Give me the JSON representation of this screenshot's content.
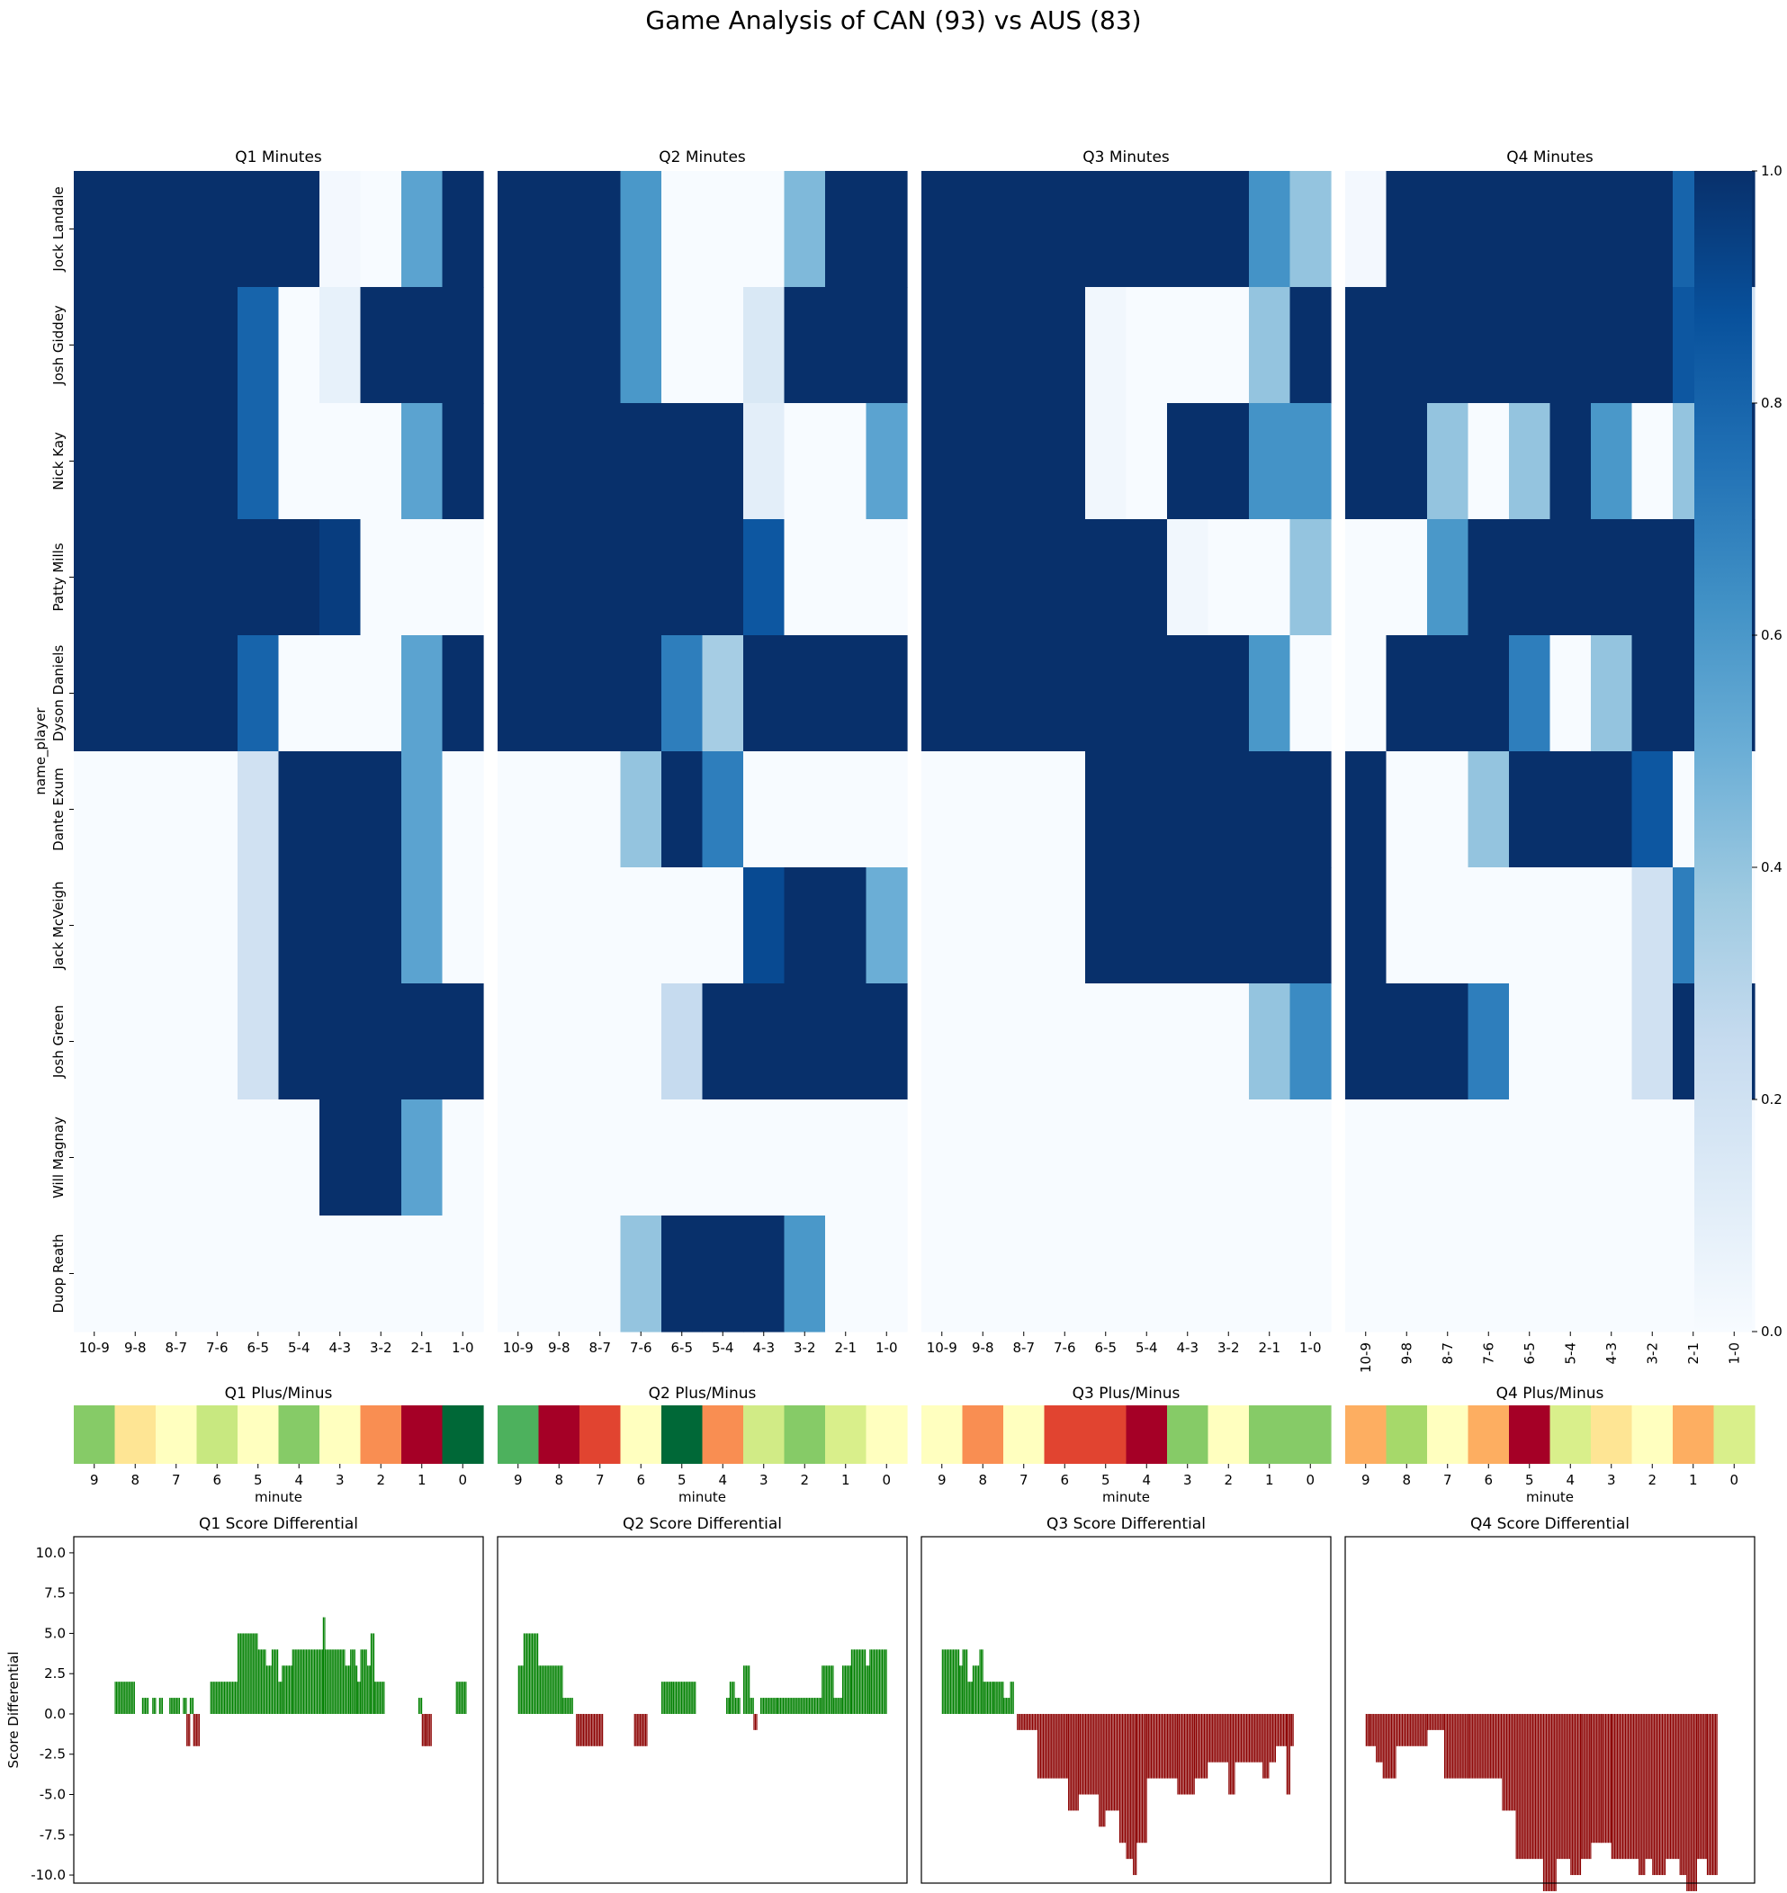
{
  "title": "Game Analysis of CAN (93) vs AUS (83)",
  "players": [
    "Jock Landale",
    "Josh Giddey",
    "Nick Kay",
    "Patty Mills",
    "Dyson Daniels",
    "Dante Exum",
    "Jack McVeigh",
    "Josh Green",
    "Will Magnay",
    "Duop Reath"
  ],
  "colors": {
    "positive": "#008000",
    "negative": "#8b0000"
  },
  "chart_data": [
    {
      "type": "heatmap",
      "titles": [
        "Q1 Minutes",
        "Q2 Minutes",
        "Q3 Minutes",
        "Q4 Minutes"
      ],
      "ylabel": "name_player",
      "xticks": [
        "10-9",
        "9-8",
        "8-7",
        "7-6",
        "6-5",
        "5-4",
        "4-3",
        "3-2",
        "2-1",
        "1-0"
      ],
      "colormap": "Blues",
      "vmin": 0,
      "vmax": 1,
      "colorbar_ticks": [
        "0.0",
        "0.2",
        "0.4",
        "0.6",
        "0.8",
        "1.0"
      ],
      "quarters": [
        [
          [
            1,
            1,
            1,
            1,
            1,
            1,
            0.02,
            0,
            0.55,
            1
          ],
          [
            1,
            1,
            1,
            1,
            0.8,
            0,
            0.08,
            1,
            1,
            1
          ],
          [
            1,
            1,
            1,
            1,
            0.8,
            0,
            0,
            0,
            0.55,
            1
          ],
          [
            1,
            1,
            1,
            1,
            1,
            1,
            0.95,
            0,
            0,
            0
          ],
          [
            1,
            1,
            1,
            1,
            0.8,
            0,
            0,
            0,
            0.55,
            1
          ],
          [
            0,
            0,
            0,
            0,
            0.2,
            1,
            1,
            1,
            0.55,
            0
          ],
          [
            0,
            0,
            0,
            0,
            0.2,
            1,
            1,
            1,
            0.55,
            0
          ],
          [
            0,
            0,
            0,
            0,
            0.2,
            1,
            1,
            1,
            1,
            1
          ],
          [
            0,
            0,
            0,
            0,
            0,
            0,
            1,
            1,
            0.55,
            0
          ],
          [
            0,
            0,
            0,
            0,
            0,
            0,
            0,
            0,
            0,
            0
          ]
        ],
        [
          [
            1,
            1,
            1,
            0.6,
            0,
            0,
            0,
            0.45,
            1,
            1
          ],
          [
            1,
            1,
            1,
            0.6,
            0,
            0,
            0.15,
            1,
            1,
            1
          ],
          [
            1,
            1,
            1,
            1,
            1,
            1,
            0.1,
            0,
            0,
            0.55
          ],
          [
            1,
            1,
            1,
            1,
            1,
            1,
            0.85,
            0,
            0,
            0
          ],
          [
            1,
            1,
            1,
            1,
            0.7,
            0.35,
            1,
            1,
            1,
            1
          ],
          [
            0,
            0,
            0,
            0.4,
            1,
            0.7,
            0,
            0,
            0,
            0
          ],
          [
            0,
            0,
            0,
            0,
            0,
            0,
            0.9,
            1,
            1,
            0.5
          ],
          [
            0,
            0,
            0,
            0,
            0.25,
            1,
            1,
            1,
            1,
            1
          ],
          [
            0,
            0,
            0,
            0,
            0,
            0,
            0,
            0,
            0,
            0
          ],
          [
            0,
            0,
            0,
            0.4,
            1,
            1,
            1,
            0.6,
            0,
            0
          ]
        ],
        [
          [
            1,
            1,
            1,
            1,
            1,
            1,
            1,
            1,
            0.62,
            0.4
          ],
          [
            1,
            1,
            1,
            1,
            0.03,
            0,
            0,
            0,
            0.4,
            1
          ],
          [
            1,
            1,
            1,
            1,
            0.03,
            0,
            1,
            1,
            0.62,
            0.62
          ],
          [
            1,
            1,
            1,
            1,
            1,
            1,
            0.03,
            0,
            0,
            0.4
          ],
          [
            1,
            1,
            1,
            1,
            1,
            1,
            1,
            1,
            0.6,
            0
          ],
          [
            0,
            0,
            0,
            0,
            1,
            1,
            1,
            1,
            1,
            1
          ],
          [
            0,
            0,
            0,
            0,
            1,
            1,
            1,
            1,
            1,
            1
          ],
          [
            0,
            0,
            0,
            0,
            0,
            0,
            0,
            0,
            0.4,
            0.65
          ],
          [
            0,
            0,
            0,
            0,
            0,
            0,
            0,
            0,
            0,
            0
          ],
          [
            0,
            0,
            0,
            0,
            0,
            0,
            0,
            0,
            0,
            0
          ]
        ],
        [
          [
            0.02,
            1,
            1,
            1,
            1,
            1,
            1,
            1,
            0.8,
            1
          ],
          [
            1,
            1,
            1,
            1,
            1,
            1,
            1,
            1,
            0.85,
            0.2
          ],
          [
            1,
            1,
            0.4,
            0,
            0.4,
            1,
            0.6,
            0,
            0.4,
            1
          ],
          [
            0,
            0,
            0.6,
            1,
            1,
            1,
            1,
            1,
            1,
            1
          ],
          [
            0,
            1,
            1,
            1,
            0.7,
            0,
            0.4,
            1,
            1,
            1
          ],
          [
            1,
            0,
            0,
            0.4,
            1,
            1,
            1,
            0.85,
            0,
            0
          ],
          [
            1,
            0,
            0,
            0,
            0,
            0,
            0,
            0.2,
            0.7,
            0
          ],
          [
            1,
            1,
            1,
            0.7,
            0,
            0,
            0,
            0.2,
            1,
            1
          ],
          [
            0,
            0,
            0,
            0,
            0,
            0,
            0,
            0,
            0,
            0
          ],
          [
            0,
            0,
            0,
            0,
            0,
            0,
            0,
            0,
            0,
            0
          ]
        ]
      ]
    },
    {
      "type": "heatmap",
      "titles": [
        "Q1 Plus/Minus",
        "Q2 Plus/Minus",
        "Q3 Plus/Minus",
        "Q4 Plus/Minus"
      ],
      "xlabel": "minute",
      "xticks": [
        "9",
        "8",
        "7",
        "6",
        "5",
        "4",
        "3",
        "2",
        "1",
        "0"
      ],
      "colormap": "RdYlGn",
      "vmin": -3,
      "vmax": 3,
      "values": [
        [
          1.5,
          -0.5,
          0,
          0.8,
          0,
          1.5,
          0,
          -1.5,
          -3,
          3
        ],
        [
          2,
          -3,
          -2.2,
          0,
          3,
          -1.5,
          0.7,
          1.5,
          0.6,
          0
        ],
        [
          0,
          -1.5,
          0,
          -2.2,
          -2.2,
          -3,
          1.5,
          0,
          1.5,
          1.5
        ],
        [
          -1.2,
          1.2,
          0,
          -1.2,
          -3,
          0.6,
          -0.5,
          0,
          -1.2,
          0.6
        ]
      ]
    },
    {
      "type": "bar",
      "titles": [
        "Q1 Score Differential",
        "Q2 Score Differential",
        "Q3 Score Differential",
        "Q4 Score Differential"
      ],
      "ylabel": "Score Differential",
      "ylim": [
        -10.5,
        11
      ],
      "yticks": [
        -10,
        -7.5,
        -5,
        -2.5,
        0,
        2.5,
        5,
        7.5,
        10
      ],
      "xlim": [
        0,
        600
      ],
      "segments": [
        [
          [
            60,
            90,
            2
          ],
          [
            92,
            100,
            0
          ],
          [
            100,
            110,
            1
          ],
          [
            115,
            120,
            1
          ],
          [
            125,
            130,
            1
          ],
          [
            140,
            155,
            1
          ],
          [
            160,
            165,
            1
          ],
          [
            165,
            170,
            -2
          ],
          [
            170,
            175,
            1
          ],
          [
            175,
            185,
            -2
          ],
          [
            200,
            240,
            2
          ],
          [
            240,
            270,
            5
          ],
          [
            270,
            282,
            4
          ],
          [
            282,
            290,
            3
          ],
          [
            290,
            300,
            4
          ],
          [
            300,
            305,
            2
          ],
          [
            305,
            320,
            3
          ],
          [
            320,
            365,
            4
          ],
          [
            365,
            368,
            6
          ],
          [
            368,
            398,
            4
          ],
          [
            398,
            405,
            3
          ],
          [
            405,
            412,
            4
          ],
          [
            412,
            415,
            3
          ],
          [
            415,
            420,
            2
          ],
          [
            420,
            430,
            4
          ],
          [
            430,
            435,
            3
          ],
          [
            435,
            440,
            5
          ],
          [
            440,
            455,
            2
          ],
          [
            505,
            510,
            1
          ],
          [
            510,
            515,
            -2
          ],
          [
            515,
            525,
            -2
          ],
          [
            560,
            575,
            2
          ]
        ],
        [
          [
            30,
            38,
            3
          ],
          [
            38,
            60,
            5
          ],
          [
            60,
            95,
            3
          ],
          [
            95,
            110,
            1
          ],
          [
            115,
            135,
            -2
          ],
          [
            135,
            155,
            -2
          ],
          [
            155,
            175,
            0
          ],
          [
            200,
            220,
            -2
          ],
          [
            240,
            255,
            2
          ],
          [
            255,
            290,
            2
          ],
          [
            335,
            340,
            1
          ],
          [
            340,
            348,
            2
          ],
          [
            348,
            355,
            1
          ],
          [
            360,
            370,
            3
          ],
          [
            370,
            375,
            1
          ],
          [
            375,
            380,
            -1
          ],
          [
            385,
            410,
            1
          ],
          [
            410,
            440,
            1
          ],
          [
            440,
            475,
            1
          ],
          [
            475,
            492,
            3
          ],
          [
            492,
            505,
            1
          ],
          [
            505,
            518,
            3
          ],
          [
            518,
            540,
            4
          ],
          [
            540,
            545,
            3
          ],
          [
            545,
            570,
            4
          ]
        ],
        [
          [
            30,
            55,
            4
          ],
          [
            55,
            60,
            3
          ],
          [
            60,
            68,
            4
          ],
          [
            68,
            75,
            2
          ],
          [
            75,
            85,
            3
          ],
          [
            85,
            90,
            4
          ],
          [
            90,
            105,
            2
          ],
          [
            105,
            120,
            2
          ],
          [
            120,
            130,
            1
          ],
          [
            130,
            135,
            2
          ],
          [
            135,
            140,
            0
          ],
          [
            140,
            150,
            -1
          ],
          [
            150,
            170,
            -1
          ],
          [
            170,
            200,
            -4
          ],
          [
            200,
            215,
            -4
          ],
          [
            215,
            230,
            -6
          ],
          [
            230,
            260,
            -5
          ],
          [
            260,
            270,
            -7
          ],
          [
            270,
            290,
            -6
          ],
          [
            290,
            300,
            -8
          ],
          [
            300,
            310,
            -9
          ],
          [
            310,
            315,
            -10
          ],
          [
            315,
            330,
            -8
          ],
          [
            330,
            375,
            -4
          ],
          [
            375,
            400,
            -5
          ],
          [
            400,
            420,
            -4
          ],
          [
            420,
            450,
            -3
          ],
          [
            450,
            460,
            -5
          ],
          [
            460,
            470,
            -3
          ],
          [
            470,
            500,
            -3
          ],
          [
            500,
            510,
            -4
          ],
          [
            510,
            520,
            -3
          ],
          [
            520,
            535,
            -2
          ],
          [
            535,
            540,
            -5
          ],
          [
            540,
            545,
            -2
          ]
        ],
        [
          [
            30,
            35,
            -2
          ],
          [
            35,
            45,
            -2
          ],
          [
            45,
            55,
            -3
          ],
          [
            55,
            75,
            -4
          ],
          [
            75,
            85,
            -2
          ],
          [
            85,
            120,
            -2
          ],
          [
            120,
            145,
            -1
          ],
          [
            145,
            180,
            -4
          ],
          [
            180,
            230,
            -4
          ],
          [
            230,
            250,
            -6
          ],
          [
            250,
            290,
            -9
          ],
          [
            290,
            310,
            -11
          ],
          [
            310,
            330,
            -9
          ],
          [
            330,
            345,
            -10
          ],
          [
            345,
            360,
            -9
          ],
          [
            360,
            375,
            -8
          ],
          [
            375,
            390,
            -8
          ],
          [
            390,
            430,
            -9
          ],
          [
            430,
            440,
            -10
          ],
          [
            440,
            450,
            -9
          ],
          [
            450,
            470,
            -10
          ],
          [
            470,
            480,
            -9
          ],
          [
            480,
            490,
            -9
          ],
          [
            490,
            500,
            -10
          ],
          [
            500,
            515,
            -11
          ],
          [
            515,
            530,
            -9
          ],
          [
            530,
            545,
            -10
          ]
        ]
      ]
    }
  ]
}
